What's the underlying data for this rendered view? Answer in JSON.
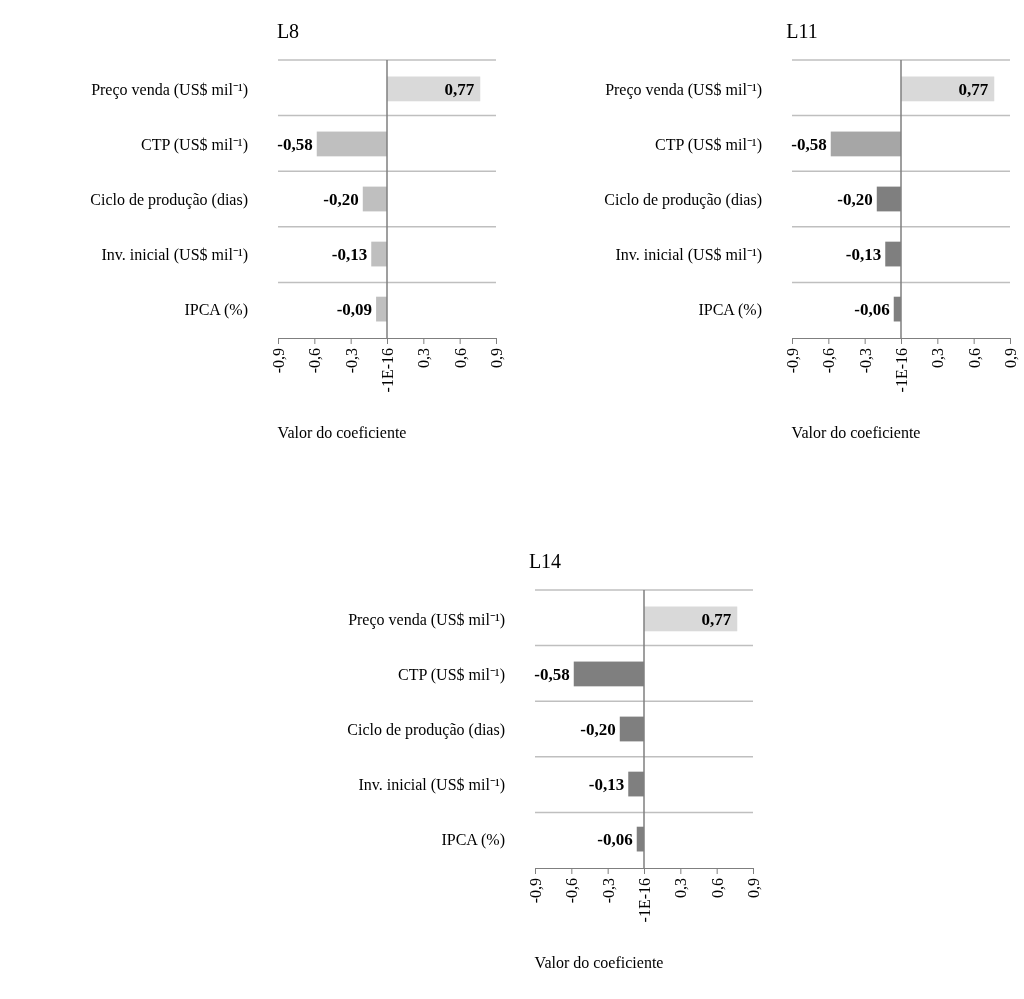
{
  "chart_data": [
    {
      "type": "bar",
      "orientation": "horizontal",
      "title": "L8",
      "xlabel": "Valor do coeficiente",
      "categories": [
        "Preço venda (US$ mil⁻¹)",
        "CTP (US$ mil⁻¹)",
        "Ciclo de produção (dias)",
        "Inv. inicial (US$ mil⁻¹)",
        "IPCA (%)"
      ],
      "values": [
        0.77,
        -0.58,
        -0.2,
        -0.13,
        -0.09
      ],
      "value_labels": [
        "0,77",
        "-0,58",
        "-0,20",
        "-0,13",
        "-0,09"
      ],
      "colors": [
        "#d9d9d9",
        "#bfbfbf",
        "#bfbfbf",
        "#bfbfbf",
        "#bfbfbf"
      ],
      "xlim": [
        -0.9,
        0.9
      ],
      "xticks": [
        {
          "value": -0.9,
          "label": "-0,9"
        },
        {
          "value": -0.6,
          "label": "-0,6"
        },
        {
          "value": -0.3,
          "label": "-0,3"
        },
        {
          "value": 0,
          "label": "-1E-16"
        },
        {
          "value": 0.3,
          "label": "0,3"
        },
        {
          "value": 0.6,
          "label": "0,6"
        },
        {
          "value": 0.9,
          "label": "0,9"
        }
      ],
      "grid": "y"
    },
    {
      "type": "bar",
      "orientation": "horizontal",
      "title": "L11",
      "xlabel": "Valor do coeficiente",
      "categories": [
        "Preço venda (US$ mil⁻¹)",
        "CTP (US$ mil⁻¹)",
        "Ciclo de produção (dias)",
        "Inv. inicial (US$ mil⁻¹)",
        "IPCA (%)"
      ],
      "values": [
        0.77,
        -0.58,
        -0.2,
        -0.13,
        -0.06
      ],
      "value_labels": [
        "0,77",
        "-0,58",
        "-0,20",
        "-0,13",
        "-0,06"
      ],
      "colors": [
        "#d9d9d9",
        "#a6a6a6",
        "#7f7f7f",
        "#7f7f7f",
        "#7f7f7f"
      ],
      "xlim": [
        -0.9,
        0.9
      ],
      "xticks": [
        {
          "value": -0.9,
          "label": "-0,9"
        },
        {
          "value": -0.6,
          "label": "-0,6"
        },
        {
          "value": -0.3,
          "label": "-0,3"
        },
        {
          "value": 0,
          "label": "-1E-16"
        },
        {
          "value": 0.3,
          "label": "0,3"
        },
        {
          "value": 0.6,
          "label": "0,6"
        },
        {
          "value": 0.9,
          "label": "0,9"
        }
      ],
      "grid": "y"
    },
    {
      "type": "bar",
      "orientation": "horizontal",
      "title": "L14",
      "xlabel": "Valor do coeficiente",
      "categories": [
        "Preço venda (US$ mil⁻¹)",
        "CTP (US$ mil⁻¹)",
        "Ciclo de produção (dias)",
        "Inv. inicial (US$ mil⁻¹)",
        "IPCA (%)"
      ],
      "values": [
        0.77,
        -0.58,
        -0.2,
        -0.13,
        -0.06
      ],
      "value_labels": [
        "0,77",
        "-0,58",
        "-0,20",
        "-0,13",
        "-0,06"
      ],
      "colors": [
        "#d9d9d9",
        "#7f7f7f",
        "#7f7f7f",
        "#7f7f7f",
        "#7f7f7f"
      ],
      "xlim": [
        -0.9,
        0.9
      ],
      "xticks": [
        {
          "value": -0.9,
          "label": "-0,9"
        },
        {
          "value": -0.6,
          "label": "-0,6"
        },
        {
          "value": -0.3,
          "label": "-0,3"
        },
        {
          "value": 0,
          "label": "-1E-16"
        },
        {
          "value": 0.3,
          "label": "0,3"
        },
        {
          "value": 0.6,
          "label": "0,6"
        },
        {
          "value": 0.9,
          "label": "0,9"
        }
      ],
      "grid": "y"
    }
  ]
}
